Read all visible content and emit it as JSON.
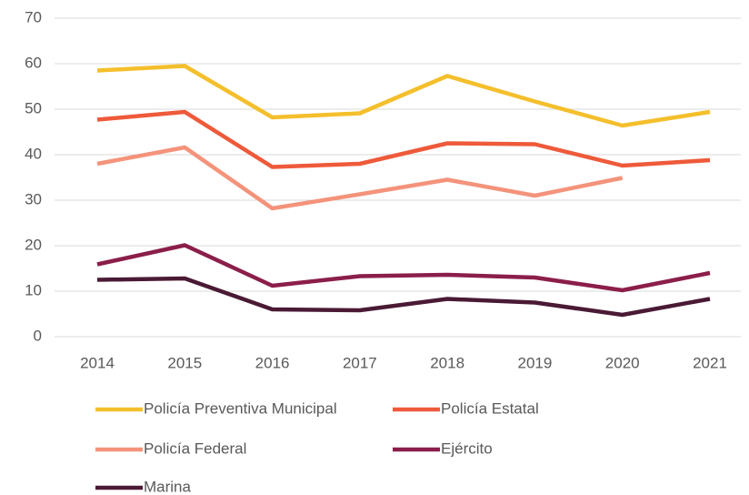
{
  "chart_data": {
    "type": "line",
    "categories": [
      "2014",
      "2015",
      "2016",
      "2017",
      "2018",
      "2019",
      "2020",
      "2021"
    ],
    "series": [
      {
        "name": "Policía Preventiva Municipal",
        "color": "#f4bf2c",
        "values": [
          58.5,
          59.5,
          48.2,
          49.1,
          57.3,
          51.7,
          46.4,
          49.4
        ]
      },
      {
        "name": "Policía Estatal",
        "color": "#ee5a3a",
        "values": [
          47.7,
          49.4,
          37.3,
          38.0,
          42.5,
          42.3,
          37.6,
          38.8
        ]
      },
      {
        "name": "Policía Federal",
        "color": "#f4937b",
        "values": [
          38.0,
          41.6,
          28.2,
          31.3,
          34.5,
          31.0,
          34.9,
          null
        ]
      },
      {
        "name": "Ejército",
        "color": "#8b1e4a",
        "values": [
          15.9,
          20.1,
          11.2,
          13.3,
          13.6,
          13.0,
          10.2,
          14.0
        ]
      },
      {
        "name": "Marina",
        "color": "#4a1a34",
        "values": [
          12.5,
          12.8,
          6.0,
          5.8,
          8.3,
          7.5,
          4.8,
          8.3
        ]
      }
    ],
    "ylim": [
      0,
      70
    ],
    "yticks": [
      0,
      10,
      20,
      30,
      40,
      50,
      60,
      70
    ],
    "grid": true,
    "legend": "bottom"
  }
}
